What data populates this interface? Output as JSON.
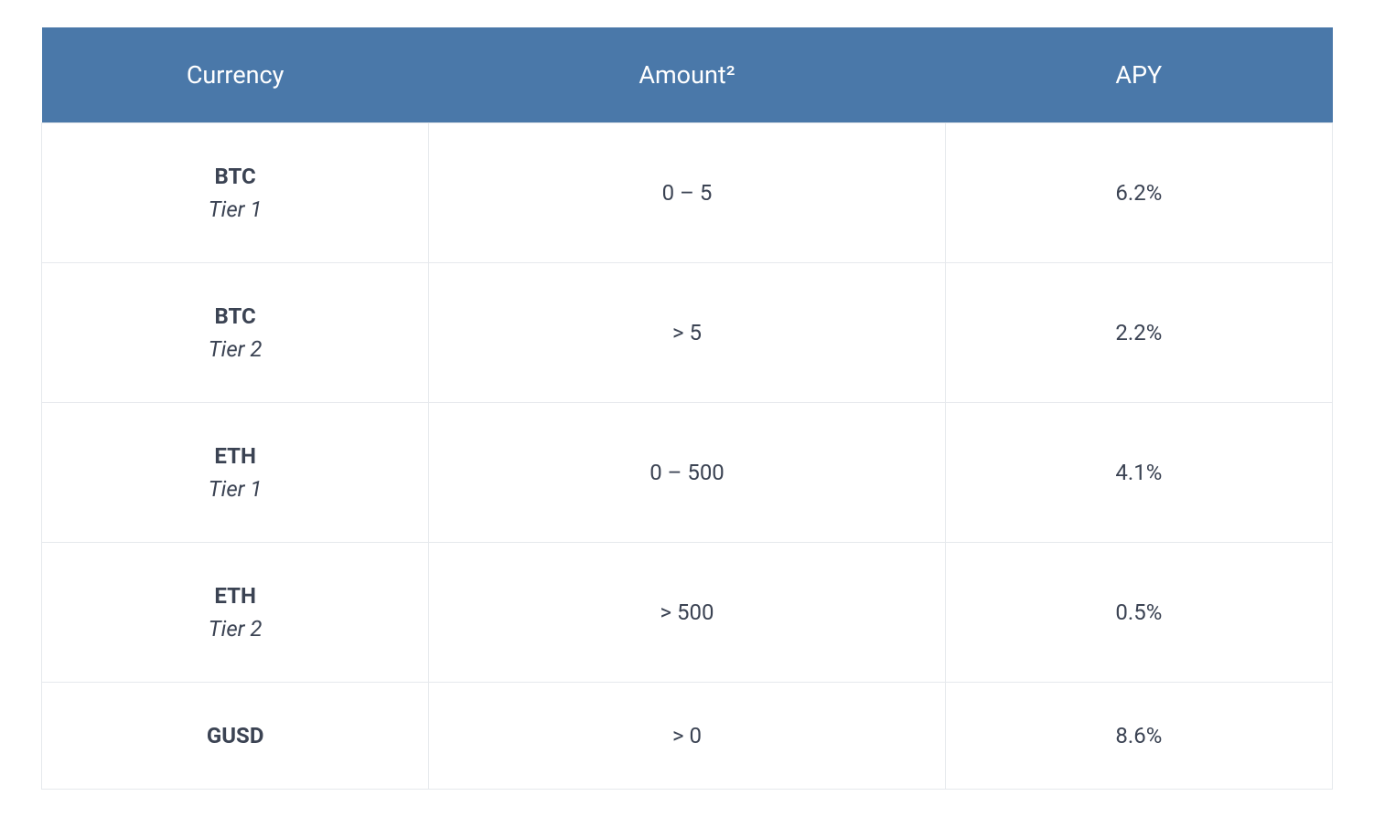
{
  "table": {
    "columns": [
      "Currency",
      "Amount²",
      "APY"
    ],
    "header_bg_color": "#4a78a9",
    "header_text_color": "#ffffff",
    "header_fontsize": 27,
    "header_fontweight": 400,
    "row_bg_color": "#ffffff",
    "border_color": "#e6e9ed",
    "cell_text_color": "#3b4353",
    "cell_fontsize": 24,
    "column_widths_pct": [
      30,
      40,
      30
    ],
    "rows": [
      {
        "symbol": "BTC",
        "tier": "Tier 1",
        "amount": "0 – 5",
        "apy": "6.2%"
      },
      {
        "symbol": "BTC",
        "tier": "Tier 2",
        "amount": "> 5",
        "apy": "2.2%"
      },
      {
        "symbol": "ETH",
        "tier": "Tier 1",
        "amount": "0 – 500",
        "apy": "4.1%"
      },
      {
        "symbol": "ETH",
        "tier": "Tier 2",
        "amount": "> 500",
        "apy": "0.5%"
      },
      {
        "symbol": "GUSD",
        "tier": "",
        "amount": "> 0",
        "apy": "8.6%"
      }
    ]
  }
}
